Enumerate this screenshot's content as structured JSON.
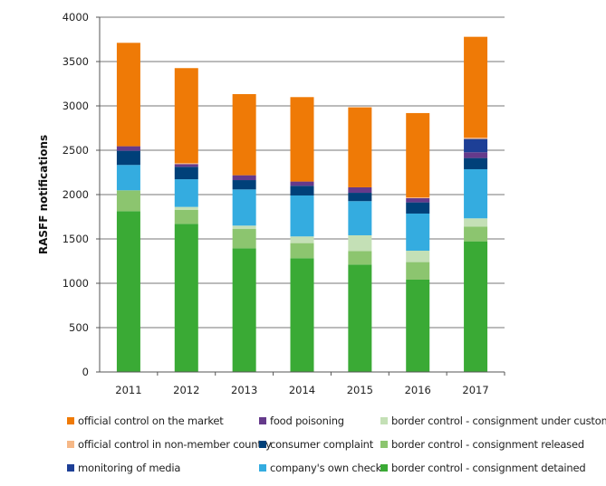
{
  "chart_data": {
    "type": "bar",
    "stacked": true,
    "title": "",
    "xlabel": "",
    "ylabel": "RASFF notifications",
    "ylim": [
      0,
      4000
    ],
    "yticks": [
      0,
      500,
      1000,
      1500,
      2000,
      2500,
      3000,
      3500,
      4000
    ],
    "grid": true,
    "legend_position": "bottom",
    "categories": [
      "2011",
      "2012",
      "2013",
      "2014",
      "2015",
      "2016",
      "2017"
    ],
    "series": [
      {
        "name": "border control - consignment detained",
        "color": "#3aaa35",
        "values": [
          1813,
          1670,
          1395,
          1283,
          1211,
          1041,
          1473
        ]
      },
      {
        "name": "border control - consignment released",
        "color": "#8cc56f",
        "values": [
          235,
          157,
          217,
          170,
          153,
          198,
          167
        ]
      },
      {
        "name": "border control - consignment under customs",
        "color": "#c4e0b6",
        "values": [
          0,
          34,
          38,
          75,
          177,
          128,
          92
        ]
      },
      {
        "name": "company's own check",
        "color": "#34ace0",
        "values": [
          286,
          312,
          408,
          462,
          385,
          419,
          554
        ]
      },
      {
        "name": "consumer complaint",
        "color": "#004079",
        "values": [
          160,
          140,
          105,
          109,
          94,
          126,
          126
        ]
      },
      {
        "name": "food poisoning",
        "color": "#653a8b",
        "values": [
          51,
          31,
          55,
          48,
          62,
          47,
          65
        ]
      },
      {
        "name": "monitoring of media",
        "color": "#1d3f96",
        "values": [
          0,
          0,
          0,
          0,
          0,
          0,
          150
        ]
      },
      {
        "name": "official control in non-member country",
        "color": "#f6b887",
        "values": [
          0,
          10,
          0,
          0,
          0,
          10,
          16
        ]
      },
      {
        "name": "official control on the market",
        "color": "#ef7a06",
        "values": [
          1166,
          1072,
          915,
          952,
          902,
          950,
          1136
        ]
      }
    ],
    "legend": [
      {
        "name": "official control on the market",
        "color": "#ef7a06"
      },
      {
        "name": "official control in non-member country",
        "color": "#f6b887"
      },
      {
        "name": "monitoring of media",
        "color": "#1d3f96"
      },
      {
        "name": "food poisoning",
        "color": "#653a8b"
      },
      {
        "name": "consumer complaint",
        "color": "#004079"
      },
      {
        "name": "company's own check",
        "color": "#34ace0"
      },
      {
        "name": "border control - consignment under customs",
        "color": "#c4e0b6"
      },
      {
        "name": "border control - consignment released",
        "color": "#8cc56f"
      },
      {
        "name": "border control - consignment detained",
        "color": "#3aaa35"
      }
    ]
  }
}
